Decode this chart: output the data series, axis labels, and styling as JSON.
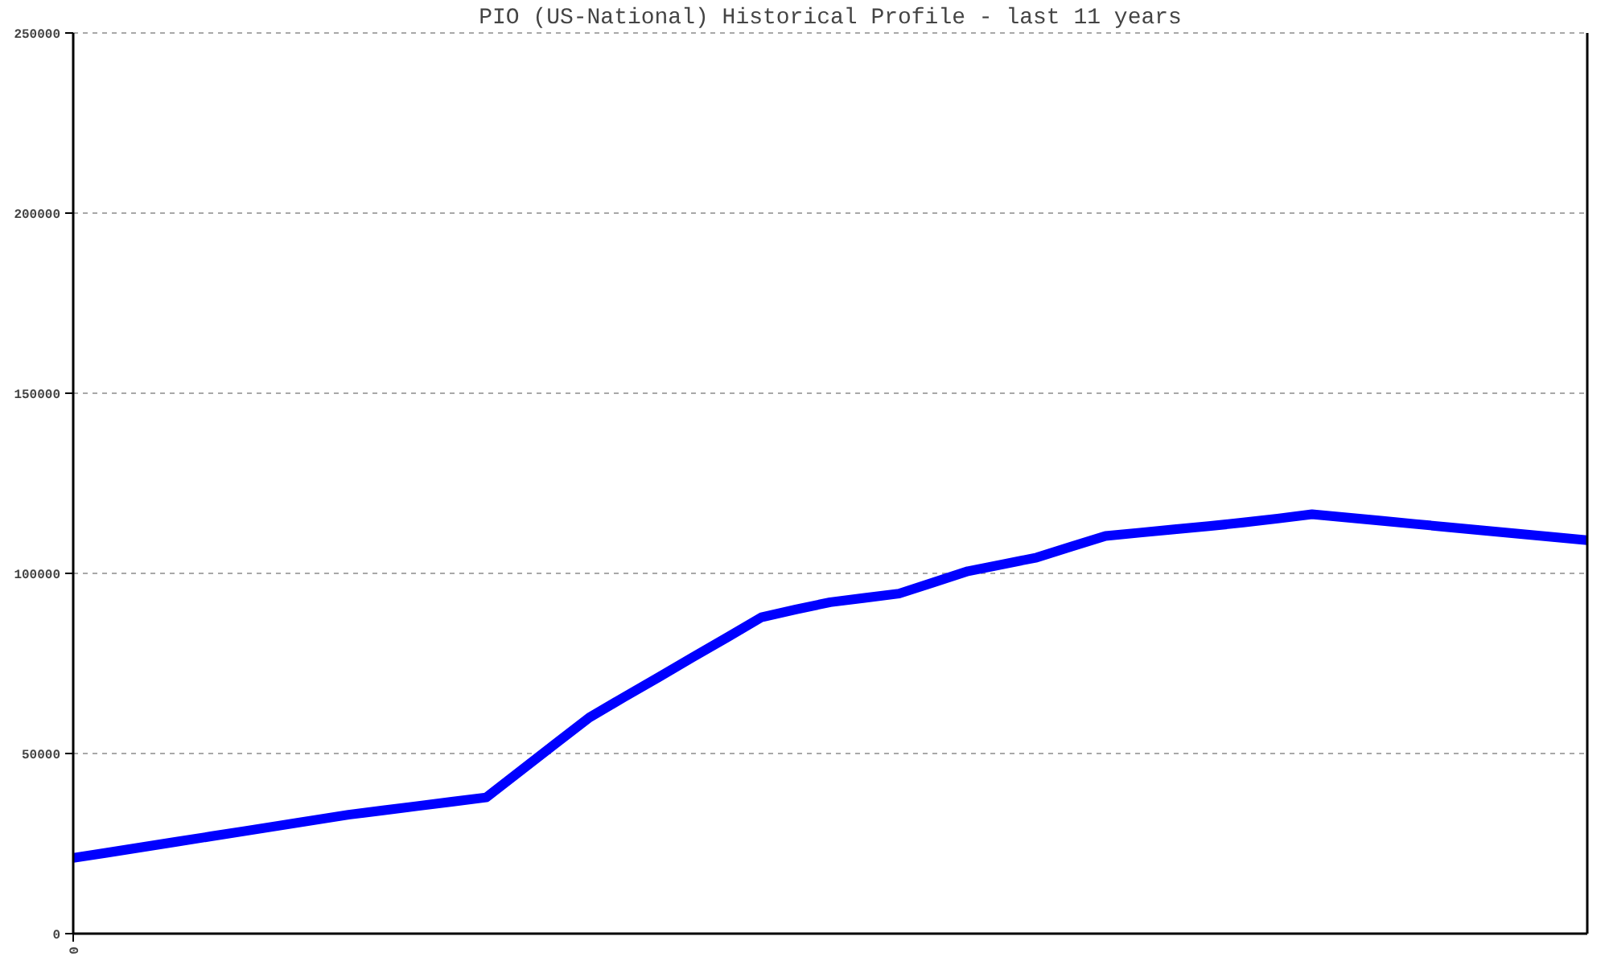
{
  "chart_data": {
    "type": "line",
    "title": "PIO (US-National) Historical Profile - last 11 years",
    "categories": [
      "0",
      null,
      null,
      null,
      null,
      null,
      null,
      null,
      null,
      null,
      null,
      null,
      null,
      null,
      null,
      null,
      null,
      null,
      null,
      null,
      null,
      null,
      null,
      null,
      null,
      null,
      null,
      null,
      null,
      null,
      null,
      null,
      null,
      null,
      null,
      null,
      null,
      null,
      null,
      null,
      null,
      null,
      null,
      null,
      null
    ],
    "series": [
      {
        "color": "#0000ff",
        "values": [
          21000,
          22500,
          24000,
          25500,
          27000,
          28500,
          30000,
          31500,
          33000,
          34200,
          35400,
          36600,
          37800,
          45200,
          52600,
          60000,
          65600,
          71100,
          76700,
          82200,
          87800,
          90000,
          92000,
          93200,
          94400,
          97500,
          100600,
          102500,
          104400,
          107400,
          110400,
          111300,
          112200,
          113100,
          114100,
          115200,
          116400,
          115500,
          114600,
          113700,
          112800,
          111900,
          111000,
          110100,
          109200
        ]
      }
    ],
    "ylim": [
      0,
      250000
    ],
    "yticks": [
      0,
      50000,
      100000,
      150000,
      200000,
      250000
    ],
    "grid": "y"
  }
}
